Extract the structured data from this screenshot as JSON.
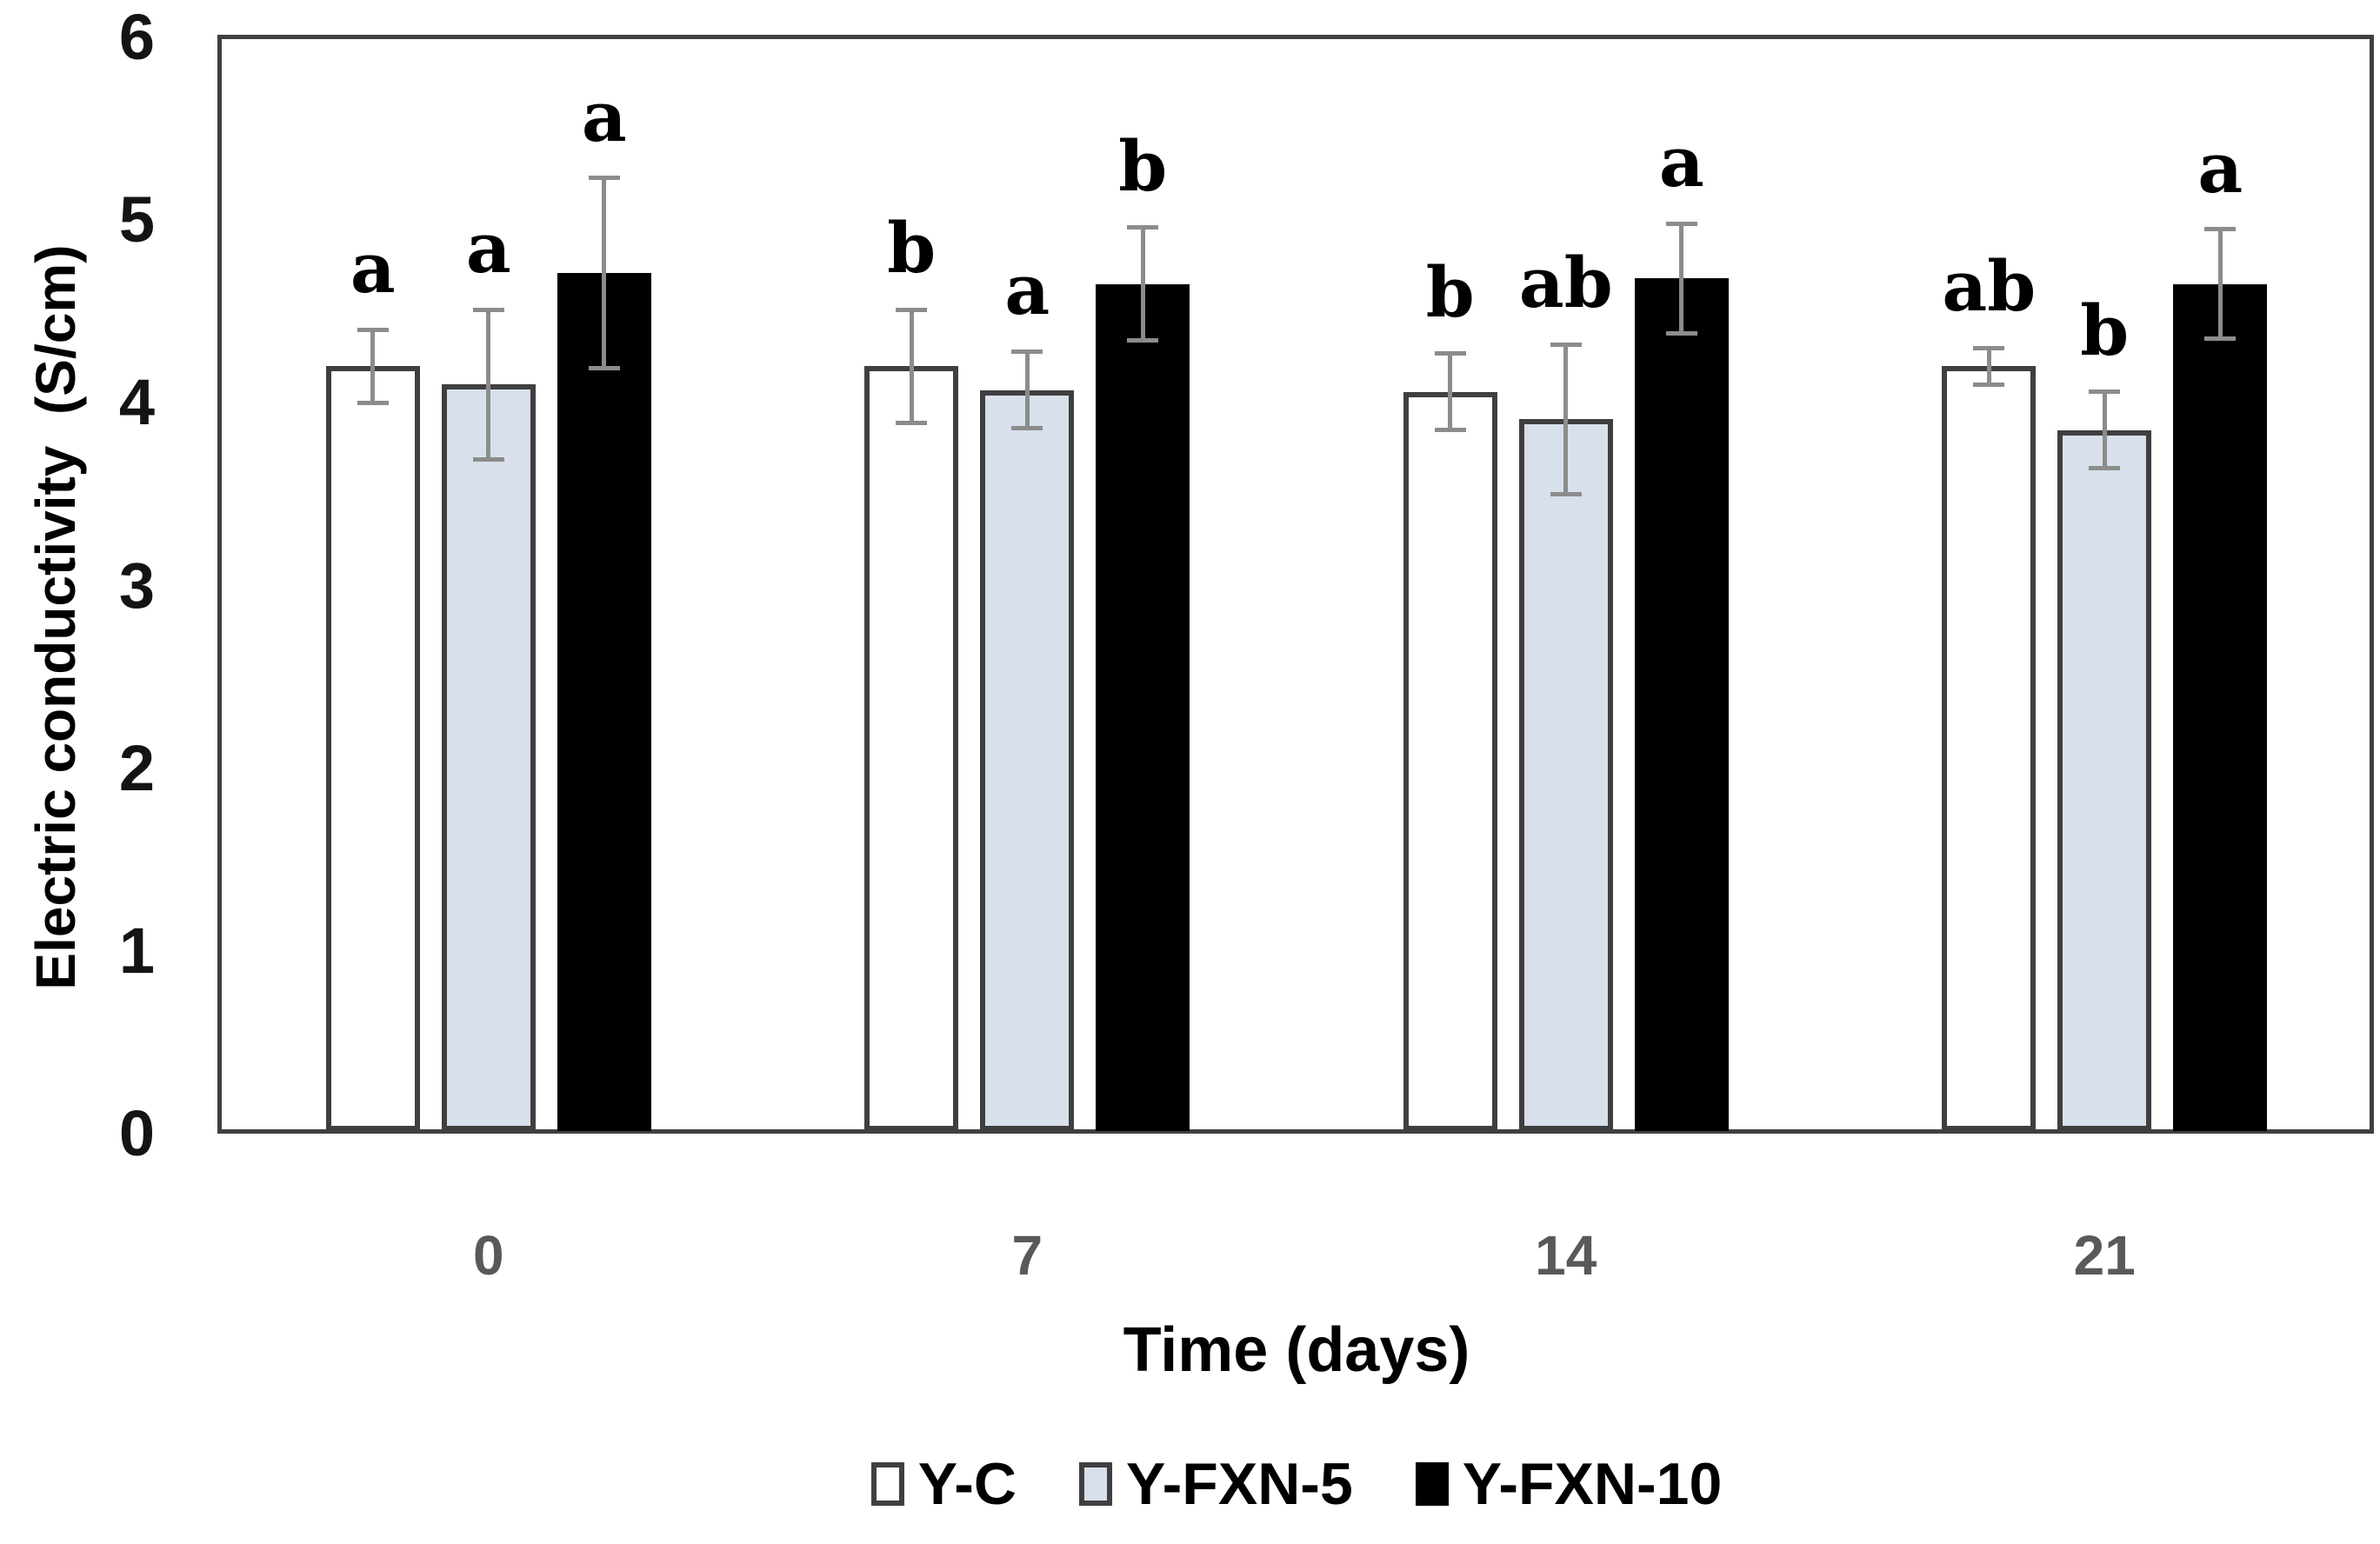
{
  "chart_data": {
    "type": "bar",
    "title": "",
    "ylabel": "Electric conductivity  (S/cm)",
    "xlabel": "Time (days)",
    "categories": [
      "0",
      "7",
      "14",
      "21"
    ],
    "y_ticks": [
      "0",
      "1",
      "2",
      "3",
      "4",
      "5",
      "6"
    ],
    "ylim": [
      0,
      6
    ],
    "grid": false,
    "legend_position": "bottom",
    "series": [
      {
        "name": "Y-C",
        "fill": "#ffffff",
        "border": "#3f3f3f",
        "values": [
          4.2,
          4.2,
          4.06,
          4.2
        ],
        "errors": [
          0.2,
          0.31,
          0.21,
          0.1
        ],
        "sig_letters": [
          "a",
          "b",
          "b",
          "ab"
        ]
      },
      {
        "name": "Y-FXN-5",
        "fill": "#d8e0ec",
        "border": "#3f3f3f",
        "values": [
          4.1,
          4.07,
          3.91,
          3.85
        ],
        "errors": [
          0.41,
          0.21,
          0.41,
          0.21
        ],
        "sig_letters": [
          "a",
          "a",
          "ab",
          "b"
        ]
      },
      {
        "name": "Y-FXN-10",
        "fill": "#000000",
        "border": "#000000",
        "values": [
          4.71,
          4.65,
          4.68,
          4.65
        ],
        "errors": [
          0.52,
          0.31,
          0.3,
          0.3
        ],
        "sig_letters": [
          "a",
          "b",
          "a",
          "a"
        ]
      }
    ],
    "colors": {
      "error_bar": "#8c8c8c",
      "axis_box": "#404040",
      "y_tick_label": "#141414",
      "x_tick_label": "#595959",
      "sig_letter": "#000000",
      "background": "#ffffff"
    }
  }
}
